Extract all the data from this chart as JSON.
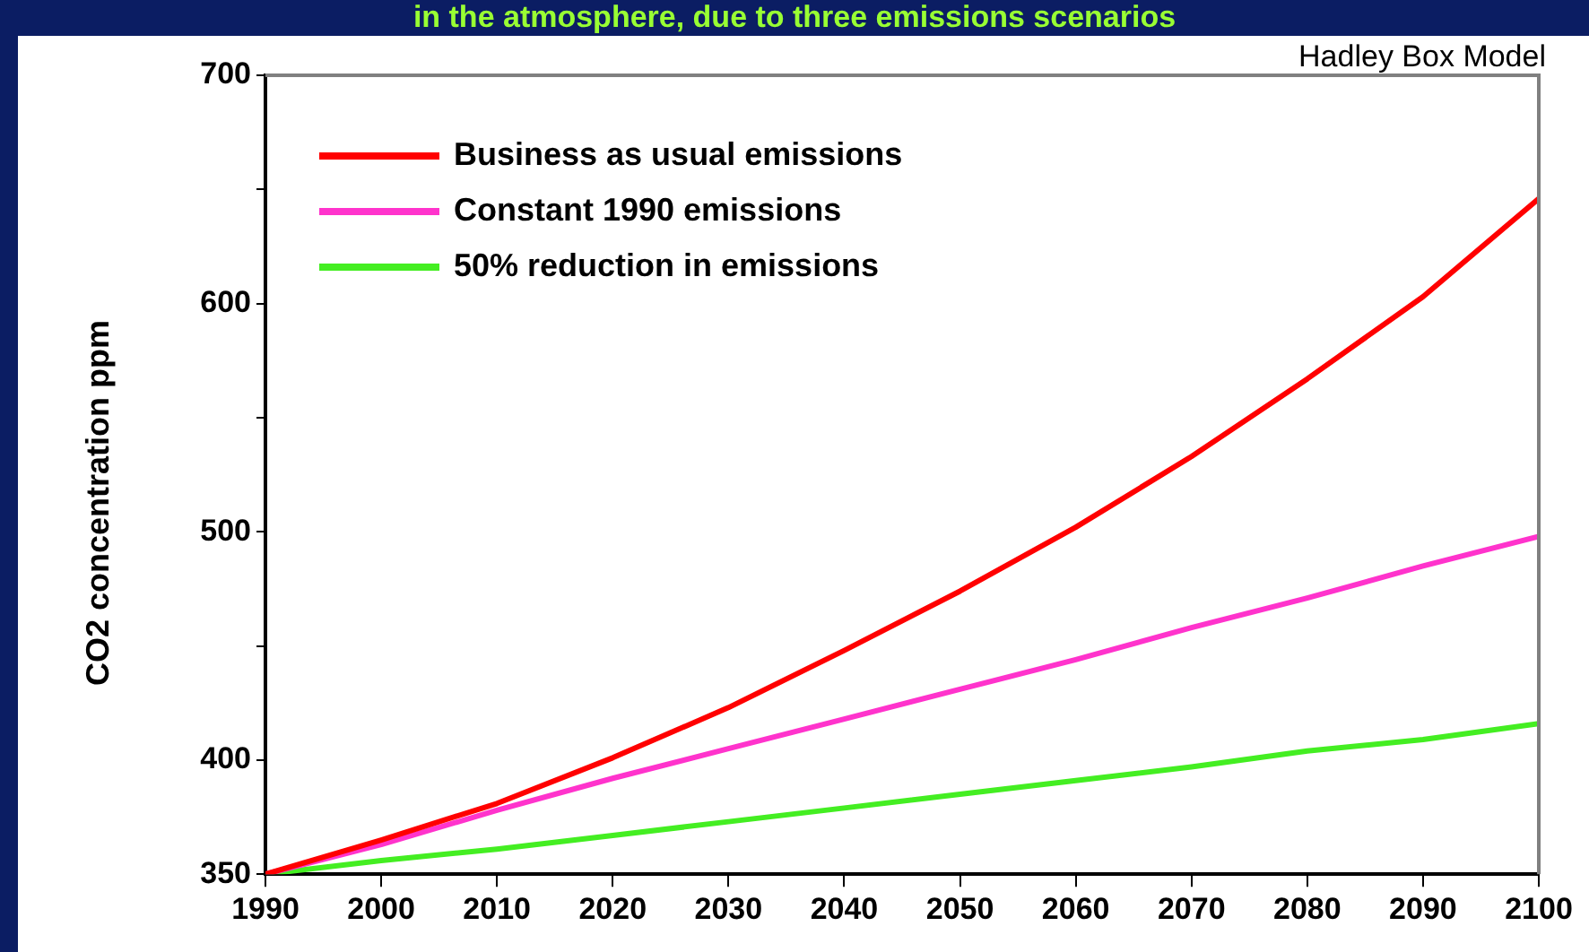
{
  "chart_data": {
    "type": "line",
    "title": "in the atmosphere, due to three emissions scenarios",
    "ylabel": "CO2 concentration  ppm",
    "annotations": [
      "Hadley Box Model"
    ],
    "x": [
      1990,
      2000,
      2010,
      2020,
      2030,
      2040,
      2050,
      2060,
      2070,
      2080,
      2090,
      2100
    ],
    "series": [
      {
        "name": "Business as usual emissions",
        "color": "#ff0000",
        "values": [
          350,
          365,
          381,
          401,
          423,
          448,
          474,
          502,
          533,
          567,
          603,
          646
        ]
      },
      {
        "name": "Constant 1990 emissions",
        "color": "#ff33cc",
        "values": [
          350,
          363,
          378,
          392,
          405,
          418,
          431,
          444,
          458,
          471,
          485,
          498
        ]
      },
      {
        "name": "50% reduction in emissions",
        "color": "#44ee22",
        "values": [
          350,
          356,
          361,
          367,
          373,
          379,
          385,
          391,
          397,
          404,
          409,
          416
        ]
      }
    ],
    "xlim": [
      1990,
      2100
    ],
    "xticks": [
      1990,
      2000,
      2010,
      2020,
      2030,
      2040,
      2050,
      2060,
      2070,
      2080,
      2090,
      2100
    ],
    "ylim": [
      350,
      700
    ],
    "yticks": [
      350,
      400,
      {
        "value": 450,
        "label": null
      },
      500,
      {
        "value": 550,
        "label": null
      },
      600,
      {
        "value": 650,
        "label": null
      },
      700
    ],
    "grid": false,
    "legend": "top left",
    "marker": "none",
    "line_style": "solid"
  }
}
